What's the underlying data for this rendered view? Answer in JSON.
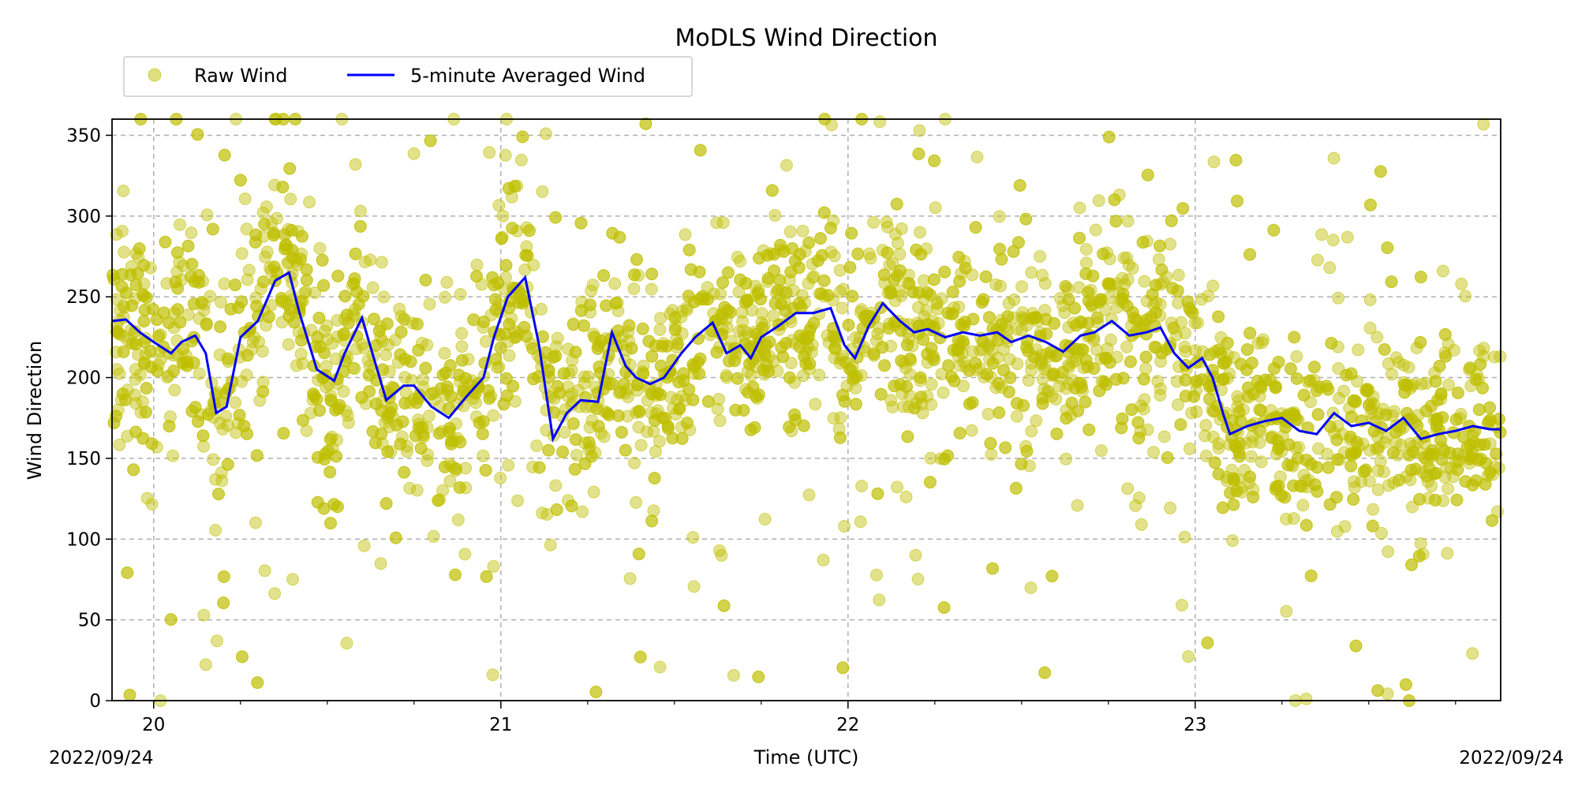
{
  "chart_data": {
    "type": "scatter",
    "title": "MoDLS Wind Direction",
    "xlabel": "Time (UTC)",
    "ylabel": "Wind Direction",
    "x_unit": "days (day of month, 2022/09)",
    "xlim": [
      19.88,
      23.88
    ],
    "ylim": [
      0,
      360
    ],
    "x_major_ticks": [
      20,
      21,
      22,
      23
    ],
    "x_minor_step": 0.25,
    "y_ticks": [
      0,
      50,
      100,
      150,
      200,
      250,
      300,
      350
    ],
    "date_left": "2022/09/24",
    "date_right": "2022/09/24",
    "grid": true,
    "legend_placement": "top-left above plot, 2 columns",
    "series": [
      {
        "name": "Raw Wind",
        "kind": "scatter",
        "color": "#bfbf00",
        "alpha": 0.5,
        "description_points_approx": "dense scatter around the averaged line with wide spread; points follow same trend"
      },
      {
        "name": "5-minute Averaged Wind",
        "kind": "line",
        "color": "#0000ff",
        "x": [
          19.88,
          19.92,
          19.96,
          20.0,
          20.05,
          20.08,
          20.12,
          20.15,
          20.18,
          20.21,
          20.25,
          20.3,
          20.35,
          20.39,
          20.42,
          20.47,
          20.52,
          20.55,
          20.6,
          20.63,
          20.67,
          20.72,
          20.75,
          20.8,
          20.85,
          20.9,
          20.95,
          20.98,
          21.02,
          21.07,
          21.11,
          21.15,
          21.19,
          21.23,
          21.28,
          21.32,
          21.36,
          21.39,
          21.43,
          21.47,
          21.52,
          21.56,
          21.61,
          21.65,
          21.69,
          21.72,
          21.75,
          21.8,
          21.85,
          21.9,
          21.95,
          21.99,
          22.02,
          22.06,
          22.1,
          22.15,
          22.19,
          22.23,
          22.28,
          22.33,
          22.38,
          22.43,
          22.47,
          22.52,
          22.57,
          22.62,
          22.67,
          22.71,
          22.76,
          22.81,
          22.86,
          22.9,
          22.94,
          22.98,
          23.02,
          23.05,
          23.08,
          23.1,
          23.15,
          23.2,
          23.25,
          23.3,
          23.35,
          23.4,
          23.45,
          23.5,
          23.55,
          23.6,
          23.65,
          23.7,
          23.75,
          23.8,
          23.85,
          23.88
        ],
        "y": [
          235,
          236,
          228,
          222,
          215,
          222,
          226,
          215,
          178,
          182,
          225,
          235,
          260,
          265,
          240,
          205,
          198,
          215,
          237,
          215,
          186,
          195,
          195,
          182,
          175,
          188,
          200,
          225,
          250,
          262,
          220,
          162,
          178,
          186,
          185,
          228,
          207,
          200,
          196,
          200,
          215,
          225,
          234,
          215,
          220,
          212,
          225,
          232,
          240,
          240,
          243,
          220,
          212,
          232,
          246,
          235,
          228,
          230,
          225,
          228,
          226,
          228,
          222,
          226,
          222,
          216,
          226,
          228,
          235,
          226,
          228,
          231,
          215,
          206,
          212,
          200,
          178,
          165,
          170,
          173,
          175,
          167,
          165,
          178,
          170,
          172,
          167,
          175,
          162,
          165,
          167,
          170,
          168,
          168
        ]
      }
    ]
  }
}
